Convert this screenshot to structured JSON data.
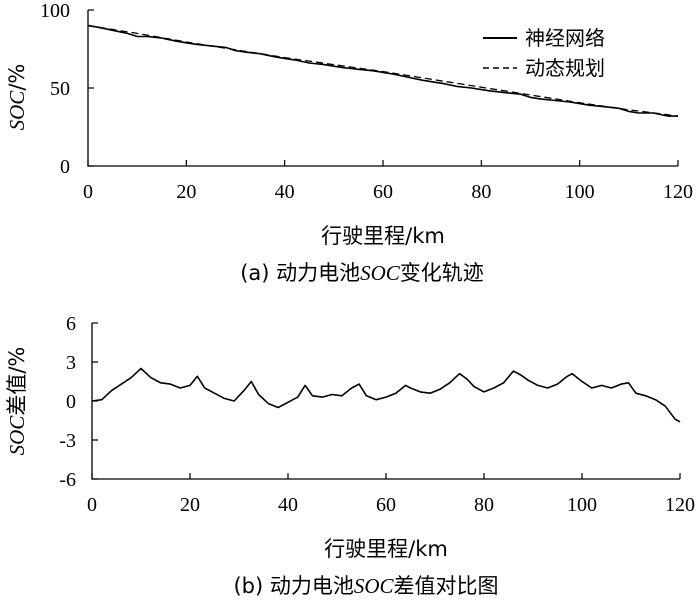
{
  "chart_data": [
    {
      "type": "line",
      "caption_prefix": "(a) 动力电池",
      "caption_em": "SOC",
      "caption_suffix": "变化轨迹",
      "xlabel": "行驶里程/km",
      "ylabel_em": "SOC",
      "ylabel_suffix": "/%",
      "xlim": [
        0,
        120
      ],
      "ylim": [
        0,
        100
      ],
      "x_ticks": [
        "0",
        "20",
        "40",
        "60",
        "80",
        "100",
        "120"
      ],
      "y_ticks": [
        "0",
        "50",
        "100"
      ],
      "legend_position": "top-right",
      "series": [
        {
          "name": "神经网络",
          "style": "solid",
          "x": [
            0,
            2,
            5,
            8,
            10,
            12,
            15,
            18,
            20,
            22,
            25,
            28,
            30,
            32,
            35,
            38,
            40,
            42,
            45,
            48,
            50,
            52,
            55,
            58,
            60,
            62,
            65,
            68,
            70,
            72,
            75,
            78,
            80,
            82,
            85,
            88,
            90,
            92,
            95,
            98,
            100,
            102,
            105,
            108,
            110,
            112,
            115,
            118,
            120
          ],
          "y": [
            90,
            89,
            87,
            85,
            83,
            83,
            82,
            80,
            79,
            78,
            77,
            76,
            74,
            73,
            72,
            70,
            69,
            68,
            66,
            65,
            64,
            63,
            62,
            61,
            60,
            59,
            57,
            55,
            54,
            53,
            51,
            50,
            49,
            48,
            47,
            46,
            44,
            43,
            42,
            41,
            40,
            39,
            38,
            37,
            35,
            34,
            34,
            32,
            32
          ]
        },
        {
          "name": "动态规划",
          "style": "dashed",
          "x": [
            0,
            10,
            20,
            30,
            40,
            50,
            60,
            70,
            80,
            90,
            100,
            110,
            120
          ],
          "y": [
            90,
            85,
            79.5,
            74.5,
            69.5,
            65,
            60.5,
            55.5,
            50.5,
            45.5,
            40.5,
            36,
            32
          ]
        }
      ]
    },
    {
      "type": "line",
      "caption_prefix": "(b) 动力电池",
      "caption_em": "SOC",
      "caption_suffix": "差值对比图",
      "xlabel": "行驶里程/km",
      "ylabel_em": "SOC",
      "ylabel_suffix": "差值/%",
      "xlim": [
        0,
        120
      ],
      "ylim": [
        -6,
        6
      ],
      "x_ticks": [
        "0",
        "20",
        "40",
        "60",
        "80",
        "100",
        "120"
      ],
      "y_ticks": [
        "6",
        "3",
        "0",
        "-3",
        "-6"
      ],
      "series": [
        {
          "x": [
            0,
            2,
            4,
            6,
            8,
            10,
            12,
            14,
            16,
            18,
            20,
            21.5,
            23,
            25,
            27,
            29,
            31,
            32.5,
            34,
            36,
            38,
            40,
            42,
            43.5,
            45,
            47,
            49,
            51,
            53,
            54.5,
            56,
            58,
            60,
            62,
            64,
            65,
            67,
            69,
            71,
            73,
            75,
            76.5,
            78,
            80,
            82,
            84,
            86,
            87.5,
            89,
            91,
            93,
            95,
            97,
            98,
            100,
            102,
            104,
            106,
            108,
            109.5,
            111,
            113,
            115,
            117,
            119,
            120
          ],
          "y": [
            0,
            0.1,
            0.8,
            1.3,
            1.8,
            2.5,
            1.8,
            1.4,
            1.3,
            1.0,
            1.2,
            1.9,
            1.0,
            0.6,
            0.2,
            0,
            0.8,
            1.5,
            0.5,
            -0.2,
            -0.5,
            -0.1,
            0.3,
            1.2,
            0.4,
            0.3,
            0.5,
            0.4,
            1.0,
            1.3,
            0.4,
            0.1,
            0.3,
            0.6,
            1.2,
            1.0,
            0.7,
            0.6,
            0.9,
            1.4,
            2.1,
            1.7,
            1.1,
            0.7,
            1.0,
            1.4,
            2.3,
            2.0,
            1.6,
            1.2,
            1.0,
            1.3,
            1.9,
            2.1,
            1.5,
            1.0,
            1.2,
            1.0,
            1.3,
            1.4,
            0.6,
            0.4,
            0.1,
            -0.4,
            -1.4,
            -1.6
          ]
        }
      ]
    }
  ]
}
